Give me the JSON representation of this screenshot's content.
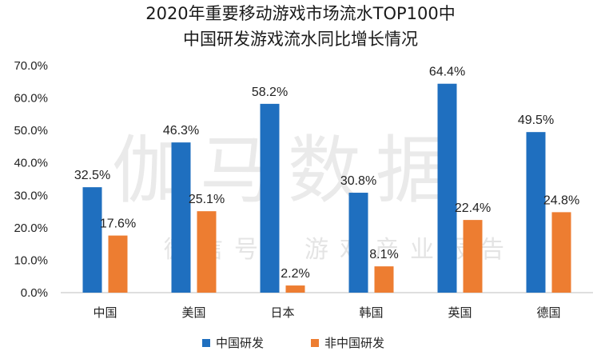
{
  "chart_data": {
    "type": "bar",
    "title": "2020年重要移动游戏市场流水TOP100中",
    "subtitle": "中国研发游戏流水同比增长情况",
    "categories": [
      "中国",
      "美国",
      "日本",
      "韩国",
      "英国",
      "德国"
    ],
    "series": [
      {
        "name": "中国研发",
        "color": "#1f6fbf",
        "values": [
          32.5,
          46.3,
          58.2,
          30.8,
          64.4,
          49.5
        ],
        "labels": [
          "32.5%",
          "46.3%",
          "58.2%",
          "30.8%",
          "64.4%",
          "49.5%"
        ]
      },
      {
        "name": "非中国研发",
        "color": "#ed7d31",
        "values": [
          17.6,
          25.1,
          2.2,
          8.1,
          22.4,
          24.8
        ],
        "labels": [
          "17.6%",
          "25.1%",
          "2.2%",
          "8.1%",
          "22.4%",
          "24.8%"
        ]
      }
    ],
    "ylim": [
      0,
      70
    ],
    "yticks": [
      "0.0%",
      "10.0%",
      "20.0%",
      "30.0%",
      "40.0%",
      "50.0%",
      "60.0%",
      "70.0%"
    ],
    "grid": false,
    "legend": "bottom-center",
    "xlabel": "",
    "ylabel": ""
  },
  "watermark": {
    "main": "伽马数据",
    "sub": "微信号：游戏产业报告"
  }
}
